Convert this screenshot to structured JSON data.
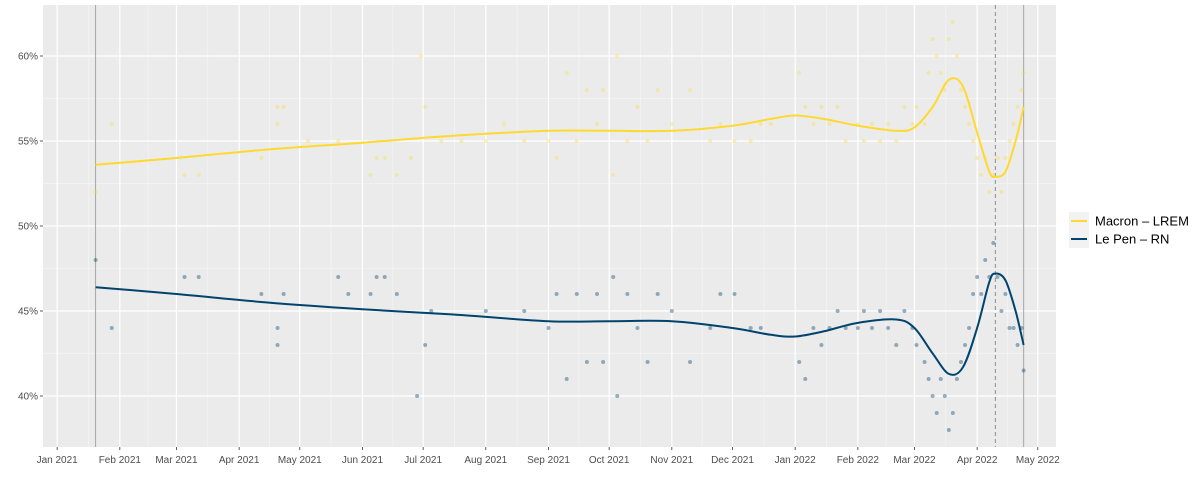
{
  "chart_data": {
    "type": "line",
    "title": "",
    "xlabel": "",
    "ylabel": "",
    "x_range": [
      "2020-12-25",
      "2022-05-10"
    ],
    "ylim": [
      37,
      63
    ],
    "y_ticks": [
      40,
      45,
      50,
      55,
      60
    ],
    "y_tick_labels": [
      "40%",
      "45%",
      "50%",
      "55%",
      "60%"
    ],
    "x_ticks": [
      "2021-01-01",
      "2021-02-01",
      "2021-03-01",
      "2021-04-01",
      "2021-05-01",
      "2021-06-01",
      "2021-07-01",
      "2021-08-01",
      "2021-09-01",
      "2021-10-01",
      "2021-11-01",
      "2021-12-01",
      "2022-01-01",
      "2022-02-01",
      "2022-03-01",
      "2022-04-01",
      "2022-05-01"
    ],
    "x_tick_labels": [
      "Jan 2021",
      "Feb 2021",
      "Mar 2021",
      "Apr 2021",
      "May 2021",
      "Jun 2021",
      "Jul 2021",
      "Aug 2021",
      "Sep 2021",
      "Oct 2021",
      "Nov 2021",
      "Dec 2021",
      "Jan 2022",
      "Feb 2022",
      "Mar 2022",
      "Apr 2022",
      "May 2022"
    ],
    "vertical_lines": [
      {
        "x": "2021-01-20",
        "style": "solid"
      },
      {
        "x": "2022-04-10",
        "style": "dashed"
      },
      {
        "x": "2022-04-24",
        "style": "solid"
      }
    ],
    "grid": true,
    "legend_position": "right",
    "series": [
      {
        "name": "Macron – LREM",
        "color": "#FFD92F",
        "trend": [
          [
            "2021-01-20",
            53.6
          ],
          [
            "2021-03-01",
            54.0
          ],
          [
            "2021-04-15",
            54.5
          ],
          [
            "2021-06-01",
            54.9
          ],
          [
            "2021-07-15",
            55.3
          ],
          [
            "2021-09-01",
            55.6
          ],
          [
            "2021-10-01",
            55.6
          ],
          [
            "2021-11-01",
            55.6
          ],
          [
            "2021-12-01",
            55.9
          ],
          [
            "2021-12-20",
            56.3
          ],
          [
            "2022-01-01",
            56.5
          ],
          [
            "2022-01-15",
            56.3
          ],
          [
            "2022-02-01",
            55.9
          ],
          [
            "2022-02-20",
            55.6
          ],
          [
            "2022-03-01",
            55.8
          ],
          [
            "2022-03-10",
            57.0
          ],
          [
            "2022-03-18",
            58.6
          ],
          [
            "2022-03-25",
            58.2
          ],
          [
            "2022-04-01",
            55.5
          ],
          [
            "2022-04-07",
            53.2
          ],
          [
            "2022-04-10",
            52.9
          ],
          [
            "2022-04-15",
            53.2
          ],
          [
            "2022-04-20",
            55.0
          ],
          [
            "2022-04-24",
            57.0
          ]
        ],
        "points": [
          [
            "2021-01-20",
            52
          ],
          [
            "2021-01-28",
            56
          ],
          [
            "2021-03-05",
            53
          ],
          [
            "2021-03-12",
            53
          ],
          [
            "2021-04-12",
            54
          ],
          [
            "2021-04-20",
            56
          ],
          [
            "2021-04-20",
            57
          ],
          [
            "2021-04-23",
            57
          ],
          [
            "2021-05-05",
            55
          ],
          [
            "2021-05-20",
            55
          ],
          [
            "2021-06-05",
            53
          ],
          [
            "2021-06-08",
            54
          ],
          [
            "2021-06-12",
            54
          ],
          [
            "2021-06-18",
            53
          ],
          [
            "2021-06-25",
            54
          ],
          [
            "2021-06-30",
            60
          ],
          [
            "2021-07-02",
            57
          ],
          [
            "2021-07-10",
            55
          ],
          [
            "2021-07-20",
            55
          ],
          [
            "2021-08-01",
            55
          ],
          [
            "2021-08-10",
            56
          ],
          [
            "2021-08-20",
            55
          ],
          [
            "2021-09-01",
            55
          ],
          [
            "2021-09-05",
            54
          ],
          [
            "2021-09-10",
            59
          ],
          [
            "2021-09-15",
            55
          ],
          [
            "2021-09-20",
            58
          ],
          [
            "2021-09-25",
            56
          ],
          [
            "2021-09-28",
            58
          ],
          [
            "2021-10-03",
            53
          ],
          [
            "2021-10-05",
            60
          ],
          [
            "2021-10-10",
            55
          ],
          [
            "2021-10-15",
            57
          ],
          [
            "2021-10-20",
            55
          ],
          [
            "2021-10-25",
            58
          ],
          [
            "2021-11-01",
            56
          ],
          [
            "2021-11-10",
            58
          ],
          [
            "2021-11-20",
            55
          ],
          [
            "2021-11-25",
            56
          ],
          [
            "2021-12-02",
            55
          ],
          [
            "2021-12-10",
            55
          ],
          [
            "2021-12-15",
            56
          ],
          [
            "2021-12-20",
            56
          ],
          [
            "2022-01-03",
            59
          ],
          [
            "2022-01-06",
            57
          ],
          [
            "2022-01-10",
            56
          ],
          [
            "2022-01-14",
            57
          ],
          [
            "2022-01-18",
            56
          ],
          [
            "2022-01-22",
            57
          ],
          [
            "2022-01-26",
            55
          ],
          [
            "2022-02-01",
            56
          ],
          [
            "2022-02-04",
            55
          ],
          [
            "2022-02-08",
            56
          ],
          [
            "2022-02-12",
            55
          ],
          [
            "2022-02-16",
            56
          ],
          [
            "2022-02-20",
            55
          ],
          [
            "2022-02-24",
            57
          ],
          [
            "2022-02-28",
            56
          ],
          [
            "2022-03-02",
            57
          ],
          [
            "2022-03-06",
            56
          ],
          [
            "2022-03-08",
            59
          ],
          [
            "2022-03-10",
            61
          ],
          [
            "2022-03-12",
            60
          ],
          [
            "2022-03-14",
            59
          ],
          [
            "2022-03-16",
            58
          ],
          [
            "2022-03-18",
            61
          ],
          [
            "2022-03-20",
            62
          ],
          [
            "2022-03-22",
            60
          ],
          [
            "2022-03-24",
            58
          ],
          [
            "2022-03-26",
            57
          ],
          [
            "2022-03-28",
            56
          ],
          [
            "2022-03-30",
            55
          ],
          [
            "2022-04-01",
            54
          ],
          [
            "2022-04-03",
            53
          ],
          [
            "2022-04-05",
            54
          ],
          [
            "2022-04-07",
            52
          ],
          [
            "2022-04-09",
            53
          ],
          [
            "2022-04-11",
            54
          ],
          [
            "2022-04-13",
            52
          ],
          [
            "2022-04-15",
            54
          ],
          [
            "2022-04-17",
            55
          ],
          [
            "2022-04-19",
            56
          ],
          [
            "2022-04-21",
            57
          ],
          [
            "2022-04-23",
            58
          ],
          [
            "2022-04-24",
            59
          ]
        ]
      },
      {
        "name": "Le Pen – RN",
        "color": "#00446E",
        "trend": [
          [
            "2021-01-20",
            46.4
          ],
          [
            "2021-03-01",
            46.0
          ],
          [
            "2021-04-15",
            45.5
          ],
          [
            "2021-06-01",
            45.1
          ],
          [
            "2021-07-15",
            44.8
          ],
          [
            "2021-09-01",
            44.4
          ],
          [
            "2021-10-01",
            44.4
          ],
          [
            "2021-11-01",
            44.4
          ],
          [
            "2021-12-01",
            44.0
          ],
          [
            "2021-12-20",
            43.6
          ],
          [
            "2022-01-01",
            43.5
          ],
          [
            "2022-01-15",
            43.8
          ],
          [
            "2022-02-01",
            44.3
          ],
          [
            "2022-02-20",
            44.5
          ],
          [
            "2022-03-01",
            44.0
          ],
          [
            "2022-03-10",
            42.5
          ],
          [
            "2022-03-18",
            41.3
          ],
          [
            "2022-03-25",
            41.7
          ],
          [
            "2022-04-01",
            44.0
          ],
          [
            "2022-04-07",
            46.7
          ],
          [
            "2022-04-10",
            47.2
          ],
          [
            "2022-04-15",
            46.8
          ],
          [
            "2022-04-20",
            45.0
          ],
          [
            "2022-04-24",
            43.0
          ]
        ],
        "points": [
          [
            "2021-01-20",
            48
          ],
          [
            "2021-01-28",
            44
          ],
          [
            "2021-03-05",
            47
          ],
          [
            "2021-03-12",
            47
          ],
          [
            "2021-04-12",
            46
          ],
          [
            "2021-04-20",
            44
          ],
          [
            "2021-04-20",
            43
          ],
          [
            "2021-04-23",
            46
          ],
          [
            "2021-05-20",
            47
          ],
          [
            "2021-05-25",
            46
          ],
          [
            "2021-06-05",
            46
          ],
          [
            "2021-06-08",
            47
          ],
          [
            "2021-06-12",
            47
          ],
          [
            "2021-06-18",
            46
          ],
          [
            "2021-06-28",
            40
          ],
          [
            "2021-07-02",
            43
          ],
          [
            "2021-07-05",
            45
          ],
          [
            "2021-08-01",
            45
          ],
          [
            "2021-08-20",
            45
          ],
          [
            "2021-09-01",
            44
          ],
          [
            "2021-09-05",
            46
          ],
          [
            "2021-09-10",
            41
          ],
          [
            "2021-09-15",
            46
          ],
          [
            "2021-09-20",
            42
          ],
          [
            "2021-09-25",
            46
          ],
          [
            "2021-09-28",
            42
          ],
          [
            "2021-10-03",
            47
          ],
          [
            "2021-10-05",
            40
          ],
          [
            "2021-10-10",
            46
          ],
          [
            "2021-10-15",
            44
          ],
          [
            "2021-10-20",
            42
          ],
          [
            "2021-10-25",
            46
          ],
          [
            "2021-11-01",
            45
          ],
          [
            "2021-11-10",
            42
          ],
          [
            "2021-11-20",
            44
          ],
          [
            "2021-11-25",
            46
          ],
          [
            "2021-12-02",
            46
          ],
          [
            "2021-12-10",
            44
          ],
          [
            "2021-12-15",
            44
          ],
          [
            "2022-01-03",
            42
          ],
          [
            "2022-01-06",
            41
          ],
          [
            "2022-01-10",
            44
          ],
          [
            "2022-01-14",
            43
          ],
          [
            "2022-01-18",
            44
          ],
          [
            "2022-01-22",
            45
          ],
          [
            "2022-01-26",
            44
          ],
          [
            "2022-02-01",
            44
          ],
          [
            "2022-02-04",
            45
          ],
          [
            "2022-02-08",
            44
          ],
          [
            "2022-02-12",
            45
          ],
          [
            "2022-02-16",
            44
          ],
          [
            "2022-02-20",
            43
          ],
          [
            "2022-02-24",
            45
          ],
          [
            "2022-02-28",
            44
          ],
          [
            "2022-03-02",
            43
          ],
          [
            "2022-03-06",
            42
          ],
          [
            "2022-03-08",
            41
          ],
          [
            "2022-03-10",
            40
          ],
          [
            "2022-03-12",
            39
          ],
          [
            "2022-03-14",
            41
          ],
          [
            "2022-03-16",
            40
          ],
          [
            "2022-03-18",
            38
          ],
          [
            "2022-03-20",
            39
          ],
          [
            "2022-03-22",
            41
          ],
          [
            "2022-03-24",
            42
          ],
          [
            "2022-03-26",
            43
          ],
          [
            "2022-03-28",
            44
          ],
          [
            "2022-03-30",
            46
          ],
          [
            "2022-04-01",
            47
          ],
          [
            "2022-04-03",
            46
          ],
          [
            "2022-04-05",
            48
          ],
          [
            "2022-04-07",
            47
          ],
          [
            "2022-04-09",
            49
          ],
          [
            "2022-04-11",
            47
          ],
          [
            "2022-04-13",
            45
          ],
          [
            "2022-04-15",
            46
          ],
          [
            "2022-04-17",
            44
          ],
          [
            "2022-04-19",
            44
          ],
          [
            "2022-04-21",
            43
          ],
          [
            "2022-04-23",
            44
          ],
          [
            "2022-04-24",
            41.5
          ]
        ]
      }
    ]
  }
}
